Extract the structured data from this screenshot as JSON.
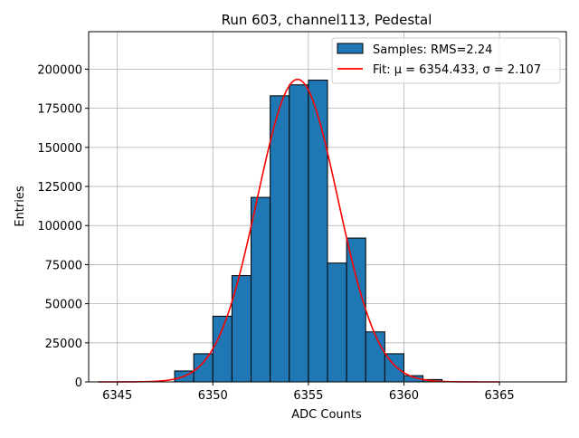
{
  "chart_data": {
    "type": "bar",
    "title": "Run 603, channel113, Pedestal",
    "xlabel": "ADC Counts",
    "ylabel": "Entries",
    "xlim": [
      6343.5,
      6368.5
    ],
    "ylim": [
      0,
      224000
    ],
    "grid": true,
    "legend_position": "top-right",
    "x_ticks": [
      6345,
      6350,
      6355,
      6360,
      6365
    ],
    "y_ticks": [
      0,
      25000,
      50000,
      75000,
      100000,
      125000,
      150000,
      175000,
      200000
    ],
    "bar_color": "#1f77b4",
    "fit_color": "#ff0000",
    "legend": [
      {
        "label": "Samples: RMS=2.24",
        "kind": "patch"
      },
      {
        "label": "Fit: μ = 6354.433, σ = 2.107",
        "kind": "line"
      }
    ],
    "histogram": {
      "bin_edges": [
        6348,
        6349,
        6350,
        6351,
        6352,
        6353,
        6354,
        6355,
        6356,
        6357,
        6358,
        6359,
        6360,
        6361,
        6362
      ],
      "counts": [
        7000,
        18000,
        42000,
        68000,
        118000,
        183000,
        190000,
        193000,
        76000,
        92000,
        32000,
        18000,
        4000,
        1500
      ]
    },
    "fit": {
      "mu": 6354.433,
      "sigma": 2.107,
      "amplitude": 193500,
      "x_range": [
        6344,
        6365
      ]
    }
  }
}
